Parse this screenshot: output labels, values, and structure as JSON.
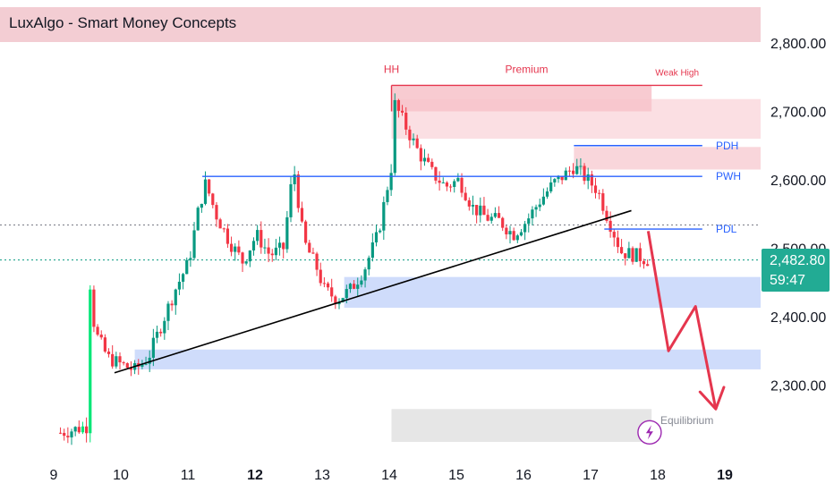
{
  "header": {
    "indicator_title": "LuxAlgo - Smart Money Concepts"
  },
  "chart_data": {
    "type": "candlestick",
    "y_axis": {
      "ticks": [
        "2,800.00",
        "2,700.00",
        "2,600.00",
        "2,500.00",
        "2,400.00",
        "2,300.00"
      ],
      "tick_values": [
        2800,
        2700,
        2600,
        2500,
        2400,
        2300
      ],
      "ylim": [
        2228,
        2860
      ]
    },
    "x_axis": {
      "ticks": [
        "9",
        "10",
        "11",
        "12",
        "13",
        "14",
        "15",
        "16",
        "17",
        "18",
        "19"
      ],
      "bold_ticks": [
        "12",
        "19"
      ]
    },
    "last_price": {
      "value": "2,482.80",
      "countdown": "59:47"
    },
    "structure_labels": {
      "hh": "HH",
      "premium": "Premium",
      "weak_high": "Weak High",
      "equilibrium": "Equilibrium"
    },
    "levels": [
      {
        "name": "PDH",
        "value": 2650
      },
      {
        "name": "PWH",
        "value": 2605
      },
      {
        "name": "PDL",
        "value": 2528
      }
    ],
    "candles_summary": {
      "start_price": 2225,
      "swing_high": 2738,
      "swing_low_mid": 2398,
      "end_price": 2482.8,
      "points": [
        [
          0,
          2228
        ],
        [
          0.3,
          2235
        ],
        [
          0.5,
          2240
        ],
        [
          0.55,
          2500
        ],
        [
          0.6,
          2380
        ],
        [
          0.8,
          2340
        ],
        [
          1.0,
          2330
        ],
        [
          1.2,
          2322
        ],
        [
          1.4,
          2340
        ],
        [
          1.6,
          2390
        ],
        [
          1.8,
          2440
        ],
        [
          2.0,
          2480
        ],
        [
          2.15,
          2560
        ],
        [
          2.25,
          2595
        ],
        [
          2.4,
          2550
        ],
        [
          2.6,
          2510
        ],
        [
          2.8,
          2480
        ],
        [
          3.0,
          2520
        ],
        [
          3.2,
          2490
        ],
        [
          3.4,
          2500
        ],
        [
          3.55,
          2620
        ],
        [
          3.7,
          2510
        ],
        [
          3.9,
          2470
        ],
        [
          4.0,
          2440
        ],
        [
          4.2,
          2425
        ],
        [
          4.4,
          2440
        ],
        [
          4.6,
          2470
        ],
        [
          4.8,
          2520
        ],
        [
          5.0,
          2620
        ],
        [
          5.05,
          2710
        ],
        [
          5.2,
          2680
        ],
        [
          5.4,
          2640
        ],
        [
          5.6,
          2610
        ],
        [
          5.8,
          2590
        ],
        [
          6.0,
          2600
        ],
        [
          6.2,
          2560
        ],
        [
          6.4,
          2545
        ],
        [
          6.6,
          2540
        ],
        [
          6.8,
          2520
        ],
        [
          7.0,
          2540
        ],
        [
          7.2,
          2570
        ],
        [
          7.4,
          2595
        ],
        [
          7.6,
          2610
        ],
        [
          7.7,
          2620
        ],
        [
          7.9,
          2600
        ],
        [
          8.05,
          2585
        ],
        [
          8.2,
          2545
        ],
        [
          8.4,
          2495
        ],
        [
          8.6,
          2490
        ],
        [
          8.8,
          2482.8
        ]
      ]
    },
    "projection": {
      "points": [
        [
          8.8,
          2525
        ],
        [
          9.1,
          2350
        ],
        [
          9.5,
          2415
        ],
        [
          9.8,
          2265
        ]
      ]
    }
  },
  "colors": {
    "up": "#089981",
    "down": "#f23645",
    "up_strong": "#00e676",
    "trendline": "#000000",
    "level_line": "#2962ff",
    "hh_line": "#e5364e",
    "premium_zone": "#f7c5cc",
    "blue_zone": "#cfdcfb",
    "equilibrium_zone": "#e6e6e6",
    "projection_arrow": "#e5364e"
  }
}
